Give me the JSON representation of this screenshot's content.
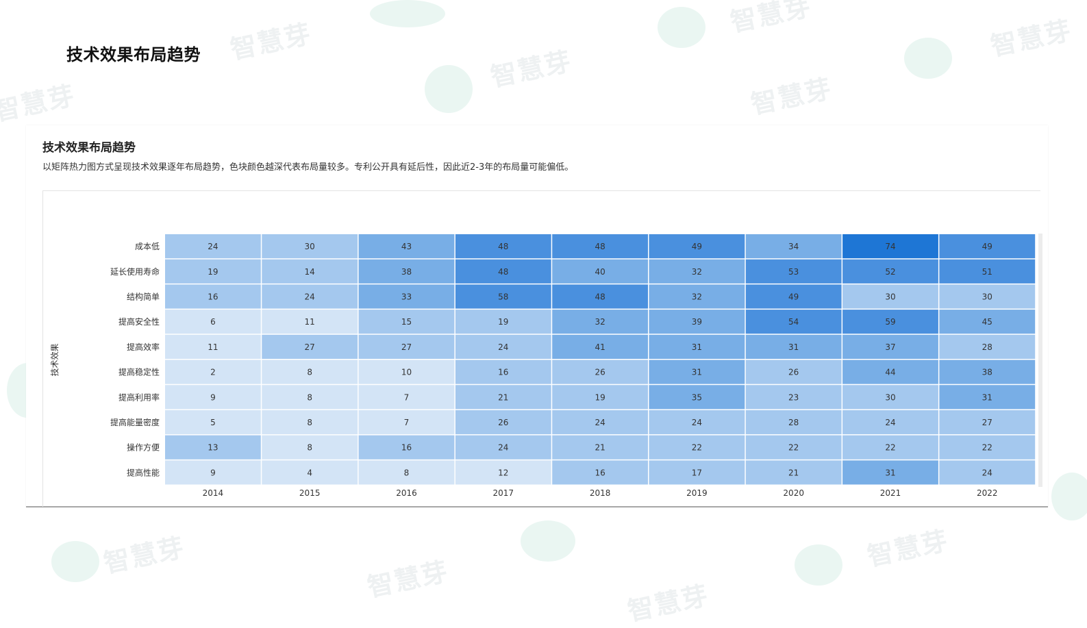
{
  "watermark": {
    "text": "智慧芽"
  },
  "page": {
    "title": "技术效果布局趋势"
  },
  "panel": {
    "title": "技术效果布局趋势",
    "subtitle": "以矩阵热力图方式呈现技术效果逐年布局趋势，色块颜色越深代表布局量较多。专利公开具有延后性，因此近2-3年的布局量可能偏低。"
  },
  "chart_data": {
    "type": "heatmap",
    "title": "",
    "xlabel": "",
    "ylabel": "技术效果",
    "x": [
      "2014",
      "2015",
      "2016",
      "2017",
      "2018",
      "2019",
      "2020",
      "2021",
      "2022"
    ],
    "y": [
      "成本低",
      "延长使用寿命",
      "结构简单",
      "提高安全性",
      "提高效率",
      "提高稳定性",
      "提高利用率",
      "提高能量密度",
      "操作方便",
      "提高性能"
    ],
    "values": [
      [
        24,
        30,
        43,
        48,
        48,
        49,
        34,
        74,
        49
      ],
      [
        19,
        14,
        38,
        48,
        40,
        32,
        53,
        52,
        51
      ],
      [
        16,
        24,
        33,
        58,
        48,
        32,
        49,
        30,
        30
      ],
      [
        6,
        11,
        15,
        19,
        32,
        39,
        54,
        59,
        45
      ],
      [
        11,
        27,
        27,
        24,
        41,
        31,
        31,
        37,
        28
      ],
      [
        2,
        8,
        10,
        16,
        26,
        31,
        26,
        44,
        38
      ],
      [
        9,
        8,
        7,
        21,
        19,
        35,
        23,
        30,
        31
      ],
      [
        5,
        8,
        7,
        26,
        24,
        24,
        28,
        24,
        27
      ],
      [
        13,
        8,
        16,
        24,
        21,
        22,
        22,
        22,
        22
      ],
      [
        9,
        4,
        8,
        12,
        16,
        17,
        21,
        31,
        24
      ]
    ],
    "color_scale": {
      "bins": [
        {
          "max": 12,
          "color": "#d3e4f6"
        },
        {
          "max": 30,
          "color": "#a4c8ee"
        },
        {
          "max": 45,
          "color": "#78aee6"
        },
        {
          "max": 70,
          "color": "#4a90de"
        },
        {
          "max": 999,
          "color": "#1e76d5"
        }
      ]
    },
    "text_color": "#333333",
    "grid": false,
    "legend": "none"
  }
}
